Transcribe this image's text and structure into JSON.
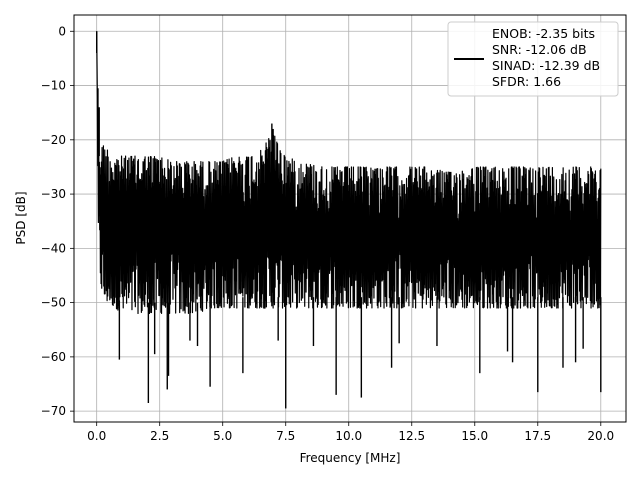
{
  "chart_data": {
    "type": "line",
    "xlabel": "Frequency [MHz]",
    "ylabel": "PSD [dB]",
    "xlim": [
      -0.9,
      21.0
    ],
    "ylim": [
      -72,
      3
    ],
    "xticks": [
      0.0,
      2.5,
      5.0,
      7.5,
      10.0,
      12.5,
      15.0,
      17.5,
      20.0
    ],
    "xtick_labels": [
      "0.0",
      "2.5",
      "5.0",
      "7.5",
      "10.0",
      "12.5",
      "15.0",
      "17.5",
      "20.0"
    ],
    "yticks": [
      0,
      -10,
      -20,
      -30,
      -40,
      -50,
      -60,
      -70
    ],
    "ytick_labels": [
      "0",
      "−10",
      "−20",
      "−30",
      "−40",
      "−50",
      "−60",
      "−70"
    ],
    "grid": true,
    "legend_position": "top-right",
    "legend_entries": [
      "ENOB: -2.35 bits",
      "SNR: -12.06 dB",
      "SINAD: -12.39 dB",
      "SFDR: 1.66"
    ],
    "series": [
      {
        "color": "#000000",
        "x": [
          0.0,
          0.03,
          0.06,
          0.1,
          0.15,
          0.2,
          0.3,
          0.5,
          0.75,
          1.0,
          1.5,
          2.0,
          2.5,
          3.0,
          3.5,
          4.0,
          4.5,
          5.0,
          5.5,
          6.0,
          6.5,
          6.8,
          7.0,
          7.2,
          7.5,
          8.0,
          9.0,
          10.0,
          11.0,
          12.0,
          13.0,
          14.0,
          15.0,
          16.0,
          17.0,
          18.0,
          19.0,
          20.0
        ],
        "upper": [
          0.0,
          -12,
          -16,
          -19,
          -20,
          -21,
          -21,
          -22,
          -23,
          -23,
          -23,
          -23,
          -23,
          -24,
          -24,
          -24,
          -24,
          -24,
          -23,
          -23,
          -22,
          -20,
          -18,
          -21,
          -23,
          -24,
          -25,
          -25,
          -25,
          -25,
          -25,
          -26,
          -25,
          -25,
          -25,
          -25,
          -25,
          -25
        ],
        "lower": [
          -24,
          -35,
          -40,
          -44,
          -46,
          -48,
          -50,
          -50,
          -51,
          -52,
          -52,
          -52,
          -52,
          -52,
          -52,
          -52,
          -51,
          -51,
          -51,
          -51,
          -51,
          -51,
          -51,
          -51,
          -51,
          -51,
          -51,
          -51,
          -51,
          -51,
          -51,
          -51,
          -51,
          -51,
          -51,
          -51,
          -51,
          -51
        ],
        "dips": [
          [
            0.9,
            -60.5
          ],
          [
            2.05,
            -68.5
          ],
          [
            2.3,
            -59.5
          ],
          [
            2.8,
            -66
          ],
          [
            2.85,
            -63.5
          ],
          [
            3.7,
            -57
          ],
          [
            4.0,
            -58
          ],
          [
            4.5,
            -65.5
          ],
          [
            5.8,
            -63
          ],
          [
            7.5,
            -69.5
          ],
          [
            7.2,
            -57
          ],
          [
            9.5,
            -67
          ],
          [
            10.5,
            -67.5
          ],
          [
            11.7,
            -62
          ],
          [
            15.2,
            -63
          ],
          [
            16.3,
            -59
          ],
          [
            16.5,
            -61
          ],
          [
            17.5,
            -66.5
          ],
          [
            18.5,
            -62
          ],
          [
            19.0,
            -61
          ],
          [
            19.3,
            -58.5
          ],
          [
            20.0,
            -66.5
          ],
          [
            12.0,
            -57.5
          ],
          [
            13.5,
            -58
          ],
          [
            8.6,
            -58
          ]
        ],
        "peaks": [
          [
            0.0,
            0.0
          ],
          [
            0.05,
            -10.5
          ],
          [
            0.1,
            -14
          ],
          [
            6.95,
            -17
          ],
          [
            7.0,
            -18
          ]
        ]
      }
    ]
  }
}
